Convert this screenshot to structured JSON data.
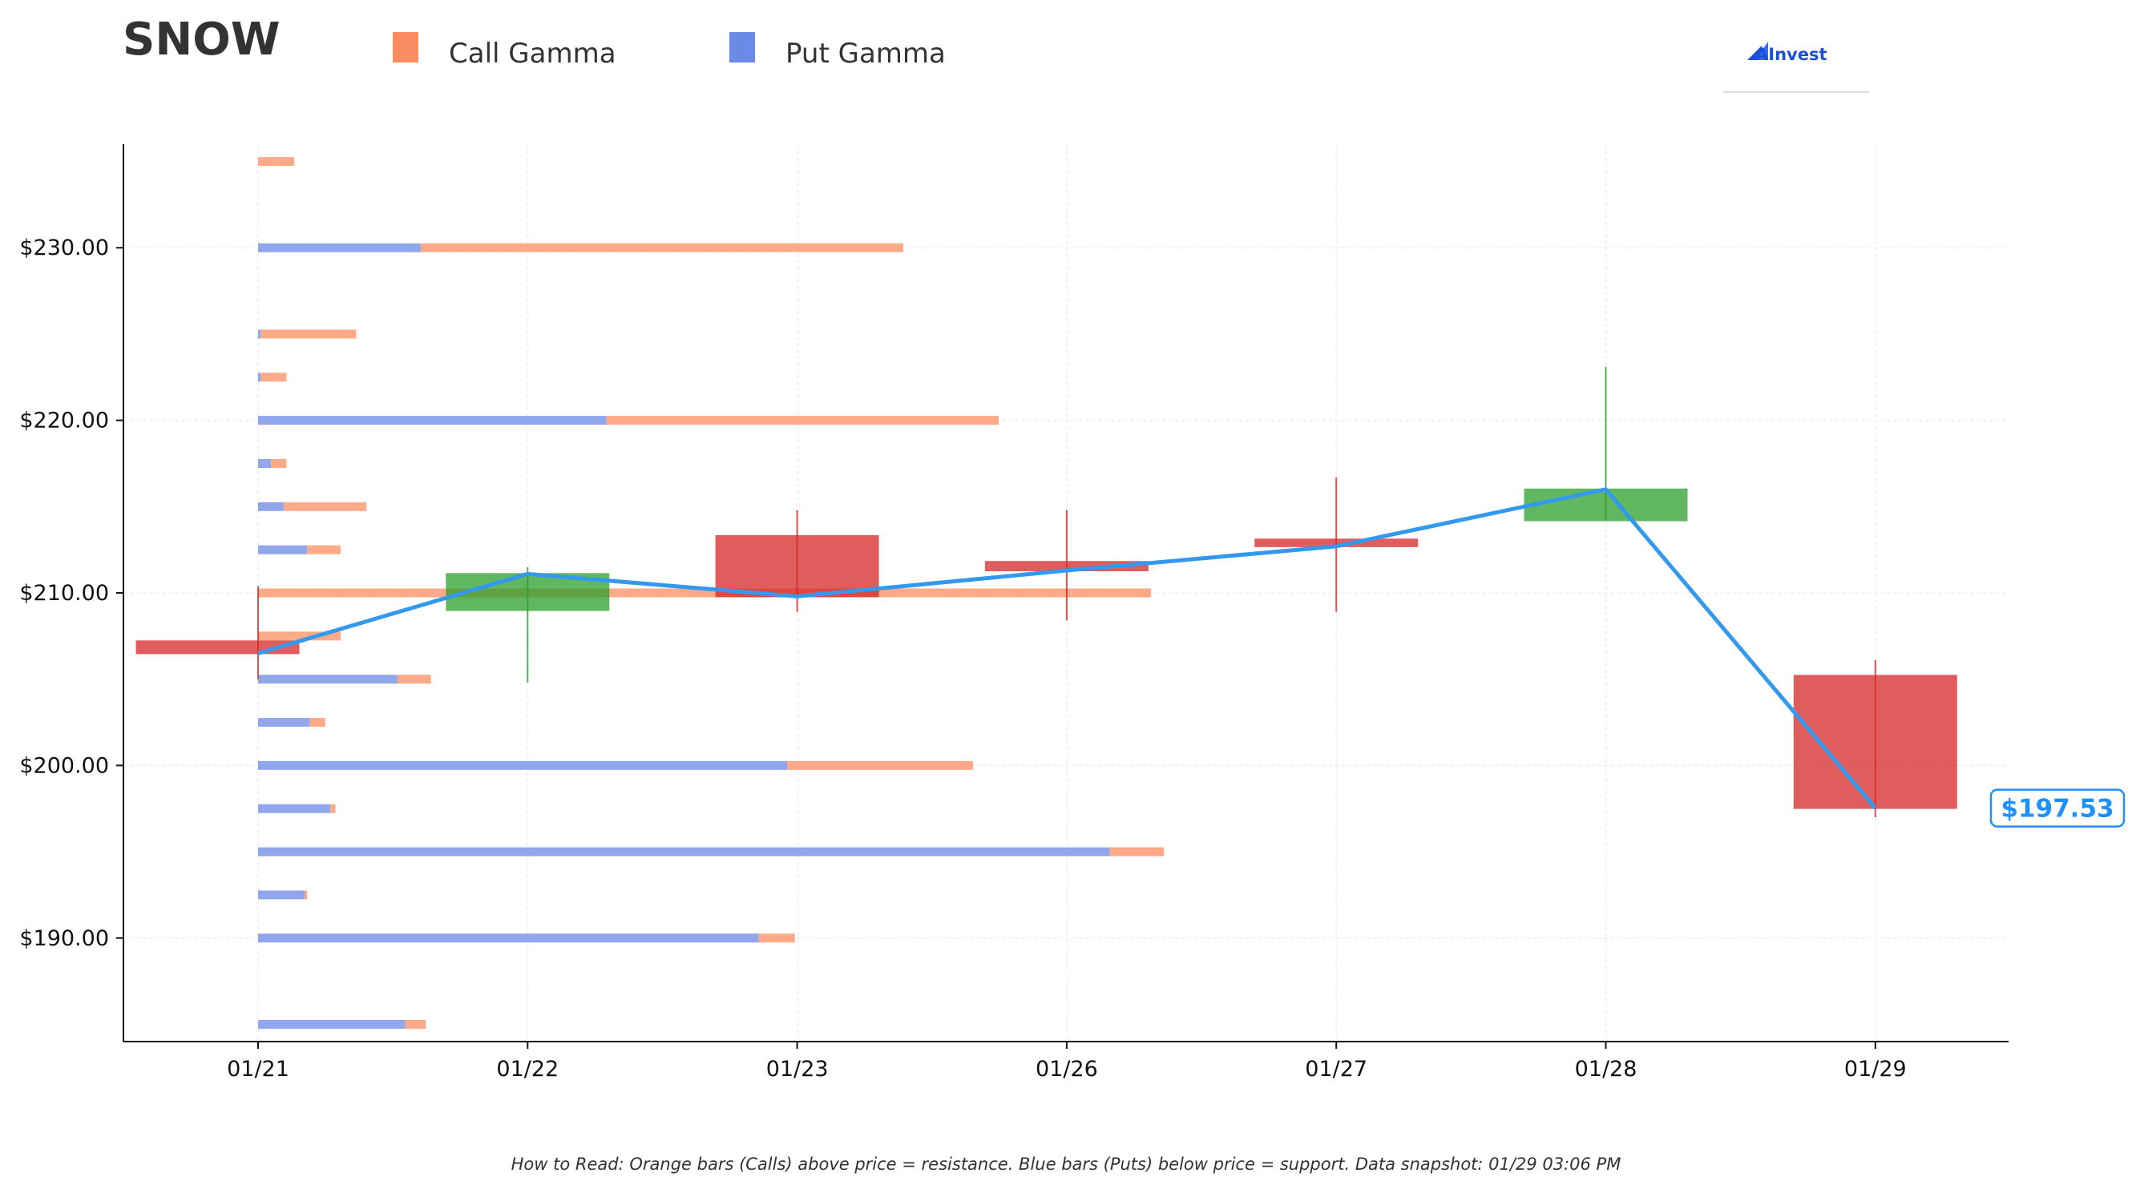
{
  "ticker": "SNOW",
  "legend": [
    {
      "label": "Call Gamma",
      "color": "#fc8d62"
    },
    {
      "label": "Put Gamma",
      "color": "#6b8ae6"
    }
  ],
  "logo_text": "AInvest",
  "footnote": "How to Read: Orange bars (Calls) above price = resistance. Blue bars (Puts) below price = support. Data snapshot: 01/29 03:06 PM",
  "price_label": "$197.53",
  "colors": {
    "call": "#fc8d62",
    "put": "#6b8ae6",
    "up": "#2ca02c",
    "down": "#d62728",
    "price_line": "#3399ee",
    "price_tag": "#1e90ff"
  },
  "chart_data": {
    "type": "candlestick_with_gamma_bars",
    "categories": [
      "01/21",
      "01/22",
      "01/23",
      "01/26",
      "01/27",
      "01/28",
      "01/29"
    ],
    "ylim": [
      184,
      236
    ],
    "yticks": [
      190,
      200,
      210,
      220,
      230
    ],
    "ytick_labels": [
      "$190.00",
      "$200.00",
      "$210.00",
      "$220.00",
      "$230.00"
    ],
    "candles": [
      {
        "date": "01/21",
        "open": 207.2,
        "close": 206.5,
        "high": 210.4,
        "low": 205.0
      },
      {
        "date": "01/22",
        "open": 209.0,
        "close": 211.1,
        "high": 211.5,
        "low": 204.8
      },
      {
        "date": "01/23",
        "open": 213.3,
        "close": 209.8,
        "high": 214.8,
        "low": 208.9
      },
      {
        "date": "01/26",
        "open": 211.8,
        "close": 211.3,
        "high": 214.8,
        "low": 208.4
      },
      {
        "date": "01/27",
        "open": 213.1,
        "close": 212.7,
        "high": 216.7,
        "low": 208.9
      },
      {
        "date": "01/28",
        "open": 214.2,
        "close": 216.0,
        "high": 223.1,
        "low": 214.2
      },
      {
        "date": "01/29",
        "open": 205.2,
        "close": 197.53,
        "high": 206.1,
        "low": 197.0
      }
    ],
    "price_line": [
      206.5,
      211.1,
      209.8,
      211.3,
      212.7,
      216.0,
      197.53
    ],
    "gamma_bars": [
      {
        "strike": 235.0,
        "put": 0.0,
        "call": 0.14
      },
      {
        "strike": 230.0,
        "put": 0.63,
        "call": 1.87
      },
      {
        "strike": 225.0,
        "put": 0.01,
        "call": 0.37
      },
      {
        "strike": 222.5,
        "put": 0.01,
        "call": 0.1
      },
      {
        "strike": 220.0,
        "put": 1.35,
        "call": 1.52
      },
      {
        "strike": 217.5,
        "put": 0.05,
        "call": 0.06
      },
      {
        "strike": 215.0,
        "put": 0.1,
        "call": 0.32
      },
      {
        "strike": 212.5,
        "put": 0.19,
        "call": 0.13
      },
      {
        "strike": 210.0,
        "put": 0.0,
        "call": 3.46
      },
      {
        "strike": 207.5,
        "put": 0.0,
        "call": 0.32
      },
      {
        "strike": 205.0,
        "put": 0.54,
        "call": 0.13
      },
      {
        "strike": 202.5,
        "put": 0.2,
        "call": 0.06
      },
      {
        "strike": 200.0,
        "put": 2.05,
        "call": 0.72
      },
      {
        "strike": 197.5,
        "put": 0.28,
        "call": 0.02
      },
      {
        "strike": 195.0,
        "put": 3.3,
        "call": 0.21
      },
      {
        "strike": 192.5,
        "put": 0.18,
        "call": 0.01
      },
      {
        "strike": 190.0,
        "put": 1.94,
        "call": 0.14
      },
      {
        "strike": 185.0,
        "put": 0.57,
        "call": 0.08
      }
    ]
  }
}
